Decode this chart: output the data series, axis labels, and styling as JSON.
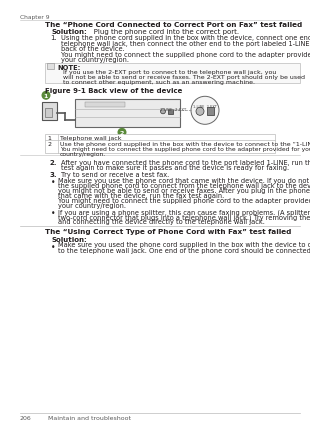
{
  "page_bg": "#ffffff",
  "text_color": "#231f20",
  "gray_text": "#5a5a5a",
  "light_gray": "#bbbbbb",
  "green_color": "#5a8a3a",
  "chapter_label": "Chapter 9",
  "section_title": "The “Phone Cord Connected to Correct Port on Fax” test failed",
  "solution_label": "Solution:",
  "solution_text": "   Plug the phone cord into the correct port.",
  "step1_lines": [
    "Using the phone cord supplied in the box with the device, connect one end to your",
    "telephone wall jack, then connect the other end to the port labeled 1-LINE on the",
    "back of the device."
  ],
  "step1_extra_lines": [
    "You might need to connect the supplied phone cord to the adapter provided for",
    "your country/region."
  ],
  "note_text_lines": [
    "If you use the 2-EXT port to connect to the telephone wall jack, you",
    "will not be able to send or receive faxes. The 2-EXT port should only be used",
    "to connect other equipment, such as an answering machine."
  ],
  "figure_label": "Figure 9-1 Back view of the device",
  "table_row1_num": "1",
  "table_row1_text": "Telephone wall jack",
  "table_row2_num": "2",
  "table_row2_text": "Use the phone cord supplied in the box with the device to connect to the “1-LINE” port",
  "table_row2_extra_lines": [
    "You might need to connect the supplied phone cord to the adapter provided for your",
    "country/region."
  ],
  "step2_lines": [
    "After you have connected the phone cord to the port labeled 1-LINE, run the fax",
    "test again to make sure it passes and the device is ready for faxing."
  ],
  "step3_text": "Try to send or receive a test fax.",
  "bullet1_lines": [
    "Make sure you use the phone cord that came with the device. If you do not use",
    "the supplied phone cord to connect from the telephone wall jack to the device,",
    "you might not be able to send or receive faxes. After you plug in the phone cord",
    "that came with the device, run the fax test again.",
    "You might need to connect the supplied phone cord to the adapter provided for",
    "your country/region."
  ],
  "bullet2_lines": [
    "If you are using a phone splitter, this can cause faxing problems. (A splitter is a",
    "two-cord connector that plugs into a telephone wall jack.) Try removing the splitter",
    "and connecting the device directly to the telephone wall jack."
  ],
  "section2_title": "The “Using Correct Type of Phone Cord with Fax” test failed",
  "section2_solution": "Solution:",
  "section2_bullet_lines": [
    "Make sure you used the phone cord supplied in the box with the device to connect",
    "to the telephone wall jack. One end of the phone cord should be connected to the"
  ],
  "footer_page": "206",
  "footer_text": "Maintain and troubleshoot"
}
